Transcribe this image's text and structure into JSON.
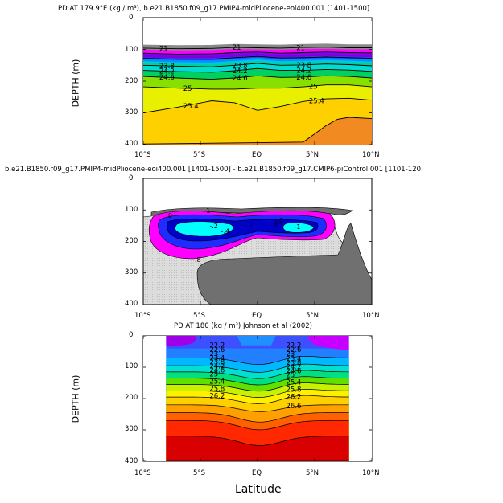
{
  "chart_data": [
    {
      "type": "heatmap",
      "title": "PD AT 179.9°E (kg / m³), b.e21.B1850.f09_g17.PMIP4-midPliocene-eoi400.001 [1401-1500]",
      "ylabel": "DEPTH (m)",
      "xlabel": "",
      "x_ticks": [
        "10°S",
        "5°S",
        "EQ",
        "5°N",
        "10°N"
      ],
      "y_ticks": [
        "0",
        "100",
        "200",
        "300",
        "400"
      ],
      "xlim": [
        -10,
        10
      ],
      "ylim": [
        400,
        0
      ],
      "contours": [
        {
          "level": 21,
          "label": "21",
          "points": [
            [
              -10,
              96
            ],
            [
              -7,
              98
            ],
            [
              -4,
              97
            ],
            [
              -2,
              94
            ],
            [
              0,
              95
            ],
            [
              2,
              96
            ],
            [
              4,
              94
            ],
            [
              6,
              93
            ],
            [
              8,
              95
            ],
            [
              10,
              95
            ]
          ]
        },
        {
          "level": 22,
          "label": "",
          "points": [
            [
              -10,
              112
            ],
            [
              -7,
              115
            ],
            [
              -4,
              114
            ],
            [
              -2,
              110
            ],
            [
              0,
              108
            ],
            [
              2,
              112
            ],
            [
              4,
              110
            ],
            [
              6,
              108
            ],
            [
              8,
              110
            ],
            [
              10,
              111
            ]
          ]
        },
        {
          "level": 23,
          "label": "",
          "points": [
            [
              -10,
              128
            ],
            [
              -7,
              131
            ],
            [
              -4,
              131
            ],
            [
              -2,
              126
            ],
            [
              0,
              122
            ],
            [
              2,
              127
            ],
            [
              4,
              126
            ],
            [
              6,
              124
            ],
            [
              8,
              126
            ],
            [
              10,
              128
            ]
          ]
        },
        {
          "level": 23.8,
          "label": "23.8",
          "points": [
            [
              -10,
              150
            ],
            [
              -7,
              153
            ],
            [
              -4,
              155
            ],
            [
              -2,
              150
            ],
            [
              0,
              144
            ],
            [
              2,
              150
            ],
            [
              4,
              149
            ],
            [
              6,
              146
            ],
            [
              8,
              148
            ],
            [
              10,
              152
            ]
          ]
        },
        {
          "level": 24.2,
          "label": "24.2",
          "points": [
            [
              -10,
              166
            ],
            [
              -7,
              170
            ],
            [
              -4,
              172
            ],
            [
              -2,
              167
            ],
            [
              0,
              160
            ],
            [
              2,
              166
            ],
            [
              4,
              166
            ],
            [
              6,
              163
            ],
            [
              8,
              165
            ],
            [
              10,
              169
            ]
          ]
        },
        {
          "level": 24.6,
          "label": "24.6",
          "points": [
            [
              -10,
              185
            ],
            [
              -7,
              190
            ],
            [
              -4,
              194
            ],
            [
              -2,
              190
            ],
            [
              0,
              183
            ],
            [
              2,
              188
            ],
            [
              4,
              187
            ],
            [
              6,
              183
            ],
            [
              8,
              185
            ],
            [
              10,
              190
            ]
          ]
        },
        {
          "level": 25,
          "label": "25",
          "points": [
            [
              -10,
              218
            ],
            [
              -7,
              222
            ],
            [
              -4,
              225
            ],
            [
              -2,
              225
            ],
            [
              0,
              222
            ],
            [
              2,
              222
            ],
            [
              4,
              218
            ],
            [
              6,
              212
            ],
            [
              8,
              212
            ],
            [
              10,
              218
            ]
          ]
        },
        {
          "level": 25.4,
          "label": "25.4",
          "points": [
            [
              -10,
              300
            ],
            [
              -7,
              282
            ],
            [
              -4,
              262
            ],
            [
              -2,
              268
            ],
            [
              0,
              292
            ],
            [
              2,
              280
            ],
            [
              4,
              264
            ],
            [
              6,
              256
            ],
            [
              8,
              254
            ],
            [
              10,
              260
            ]
          ]
        },
        {
          "level": 25.4,
          "label": "",
          "points": [
            [
              -10,
              398
            ],
            [
              -5,
              396
            ],
            [
              0,
              394
            ],
            [
              4,
              392
            ],
            [
              6,
              340
            ],
            [
              7,
              320
            ],
            [
              8,
              314
            ],
            [
              10,
              318
            ]
          ]
        }
      ]
    },
    {
      "type": "heatmap",
      "title": "b.e21.B1850.f09_g17.PMIP4-midPliocene-eoi400.001 [1401-1500] - b.e21.B1850.f09_g17.CMIP6-piControl.001 [1101-120",
      "ylabel": "",
      "xlabel": "",
      "x_ticks": [
        "10°S",
        "5°S",
        "EQ",
        "5°N",
        "10°N"
      ],
      "y_ticks": [
        "0",
        "100",
        "200",
        "300",
        "400"
      ],
      "xlim": [
        -10,
        10
      ],
      "ylim": [
        400,
        0
      ],
      "contour_labels": [
        "1",
        ".8",
        "-.2",
        "-.4",
        "-.6",
        ".6",
        "-1",
        "-1.2",
        ".8"
      ],
      "regions": [
        {
          "fill": "#d9d9d9",
          "description": "background positive anomaly"
        },
        {
          "fill": "#707070",
          "description": "deep positive anomaly"
        },
        {
          "fill": "#ff00ff",
          "description": "negative anomaly"
        },
        {
          "fill": "#0000c8",
          "description": "strong negative anomaly"
        },
        {
          "fill": "#00ffff",
          "description": "core negative anomaly"
        }
      ]
    },
    {
      "type": "heatmap",
      "title": "PD AT 180 (kg / m³) Johnson et al (2002)",
      "ylabel": "DEPTH (m)",
      "xlabel": "Latitude",
      "x_ticks": [
        "10°S",
        "5°S",
        "EQ",
        "5°N",
        "10°N"
      ],
      "y_ticks": [
        "0",
        "100",
        "200",
        "300",
        "400"
      ],
      "xlim": [
        -10,
        10
      ],
      "ylim": [
        400,
        0
      ],
      "data_xlim": [
        -8,
        8
      ],
      "contour_labels": [
        "22.2",
        "22.6",
        "23",
        "23.4",
        "23.8",
        "24.2",
        "24.6",
        "25",
        "25.4",
        "25.8",
        "26.2",
        "26.6"
      ]
    }
  ],
  "colors": {
    "panel1_bands": [
      "#ffffff",
      "#ff00ff",
      "#8800ee",
      "#1e3cff",
      "#00a0ff",
      "#00dcd0",
      "#00d060",
      "#88e000",
      "#e8f000",
      "#ffd000",
      "#ffb000",
      "#ff9a28",
      "#f08c28"
    ],
    "panel3_bands": [
      "#3c50ff",
      "#2080ff",
      "#00b8ff",
      "#00e0d0",
      "#00e080",
      "#60e000",
      "#c8f000",
      "#fff000",
      "#ffd000",
      "#ffa000",
      "#ff6000",
      "#ff2800",
      "#d80000",
      "#c00000"
    ]
  }
}
